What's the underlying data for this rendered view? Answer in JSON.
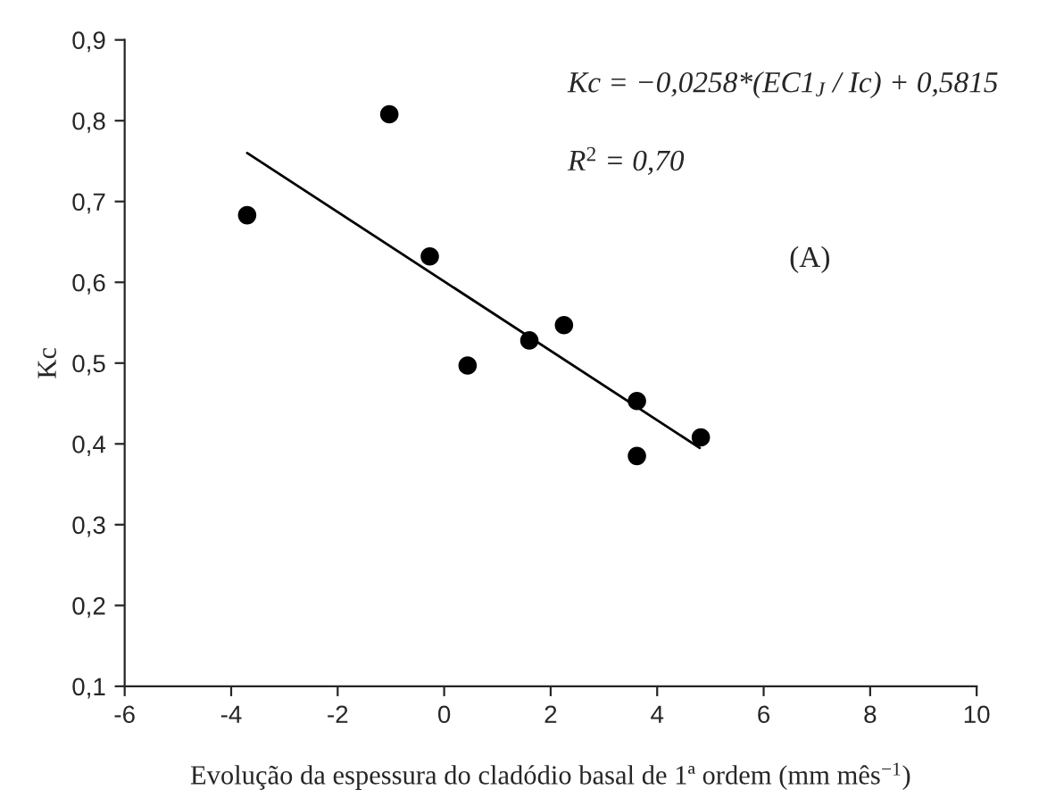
{
  "chart_data": {
    "type": "scatter",
    "xlabel": "Evolução da espessura do cladódio basal de 1ª ordem (mm mês$^{−1}$)",
    "ylabel": "Kc",
    "annotations": [
      "Kc = −0,0258*(EC1$_{J}$ / Ic) + 0,5815",
      "R$^{2}$ = 0,70",
      "(A)"
    ],
    "series": [
      {
        "color": "#000000",
        "marker": "circle",
        "x": [
          -3.7,
          -1.03,
          -0.27,
          0.44,
          1.6,
          2.25,
          3.62,
          3.62,
          4.82
        ],
        "values": [
          0.683,
          0.808,
          0.632,
          0.497,
          0.528,
          0.547,
          0.453,
          0.385,
          0.408
        ]
      },
      {
        "type": "line",
        "color": "#000000",
        "marker": "none",
        "line_style": "solid",
        "x": [
          -3.7,
          4.8
        ],
        "values": [
          0.76,
          0.395
        ]
      }
    ],
    "xlim": [
      -6,
      10
    ],
    "xticks": [
      -6,
      -4,
      -2,
      0,
      2,
      4,
      6,
      8,
      10
    ],
    "ylim": [
      0.1,
      0.9
    ],
    "yticks": [
      {
        "value": 0.1,
        "label": "0,1"
      },
      {
        "value": 0.2,
        "label": "0,2"
      },
      {
        "value": 0.3,
        "label": "0,3"
      },
      {
        "value": 0.4,
        "label": "0,4"
      },
      {
        "value": 0.5,
        "label": "0,5"
      },
      {
        "value": 0.6,
        "label": "0,6"
      },
      {
        "value": 0.7,
        "label": "0,7"
      },
      {
        "value": 0.8,
        "label": "0,8"
      },
      {
        "value": 0.9,
        "label": "0,9"
      }
    ],
    "grid": false,
    "legend": false
  }
}
